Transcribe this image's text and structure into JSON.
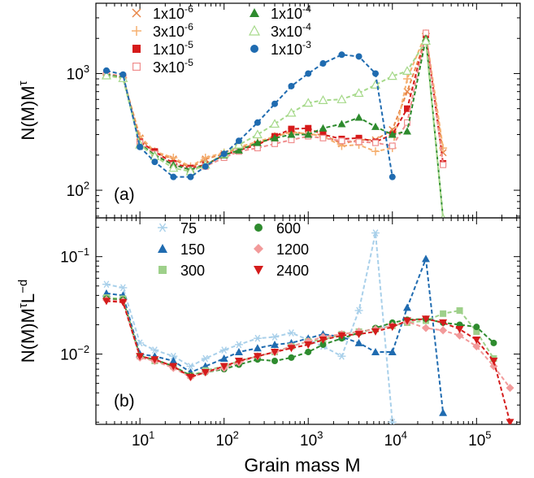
{
  "figure": {
    "xlabel": "Grain mass M",
    "x_tick_labels": [
      {
        "v": 10,
        "base": "10",
        "exp": "1"
      },
      {
        "v": 100,
        "base": "10",
        "exp": "2"
      },
      {
        "v": 1000,
        "base": "10",
        "exp": "3"
      },
      {
        "v": 10000,
        "base": "10",
        "exp": "4"
      },
      {
        "v": 100000,
        "base": "10",
        "exp": "5"
      }
    ]
  },
  "chart_data": [
    {
      "type": "line",
      "panel_label": "(a)",
      "ylabel": "N(M)M",
      "ylabel_sup": "τ",
      "xscale": "log",
      "yscale": "log",
      "xlim": [
        3,
        330000
      ],
      "ylim": [
        58,
        4000
      ],
      "y_tick_labels": [
        {
          "v": 100,
          "base": "10",
          "exp": "2"
        },
        {
          "v": 1000,
          "base": "10",
          "exp": "3"
        }
      ],
      "legend": {
        "placement": "top-left",
        "columns": 2
      },
      "series": [
        {
          "name": "1x10^-6",
          "label_base": "1x10",
          "label_exp": "-6",
          "color": "#e8874a",
          "marker": "x",
          "x": [
            4,
            6.3,
            10,
            15,
            25,
            40,
            60,
            100,
            150,
            250,
            400,
            630,
            1000,
            1500,
            2500,
            4000,
            6300,
            10000,
            15000,
            25000,
            40000
          ],
          "y": [
            960,
            910,
            280,
            210,
            185,
            155,
            185,
            205,
            230,
            250,
            285,
            320,
            300,
            300,
            250,
            270,
            270,
            330,
            700,
            2000,
            210
          ]
        },
        {
          "name": "3x10^-6",
          "label_base": "3x10",
          "label_exp": "-6",
          "color": "#f5b070",
          "marker": "plus",
          "x": [
            4,
            6.3,
            10,
            15,
            25,
            40,
            60,
            100,
            150,
            250,
            400,
            630,
            1000,
            1500,
            2500,
            4000,
            6300,
            10000,
            15000,
            25000,
            40000
          ],
          "y": [
            975,
            920,
            290,
            215,
            190,
            160,
            190,
            210,
            235,
            260,
            290,
            315,
            305,
            290,
            240,
            245,
            215,
            230,
            900,
            2200,
            230
          ]
        },
        {
          "name": "1x10^-5",
          "label_base": "1x10",
          "label_exp": "-5",
          "color": "#d61a1a",
          "marker": "square",
          "x": [
            4,
            6.3,
            10,
            15,
            25,
            40,
            60,
            100,
            150,
            250,
            400,
            630,
            1000,
            1500,
            2500,
            4000,
            6300,
            10000,
            15000,
            25000,
            40000
          ],
          "y": [
            990,
            930,
            260,
            215,
            170,
            155,
            165,
            200,
            220,
            245,
            290,
            335,
            340,
            300,
            275,
            280,
            260,
            300,
            500,
            2150,
            170
          ]
        },
        {
          "name": "3x10^-5",
          "label_base": "3x10",
          "label_exp": "-5",
          "color": "#f08e8e",
          "marker": "square-open",
          "x": [
            4,
            6.3,
            10,
            15,
            25,
            40,
            60,
            100,
            150,
            250,
            400,
            630,
            1000,
            1500,
            2500,
            4000,
            6300,
            10000,
            15000,
            25000,
            40000
          ],
          "y": [
            1000,
            950,
            255,
            205,
            165,
            150,
            160,
            190,
            215,
            230,
            250,
            270,
            290,
            280,
            265,
            260,
            255,
            240,
            380,
            2230,
            165
          ]
        },
        {
          "name": "1x10^-4",
          "label_base": "1x10",
          "label_exp": "-4",
          "color": "#2e8b2e",
          "marker": "triangle",
          "x": [
            4,
            6.3,
            10,
            15,
            25,
            40,
            60,
            100,
            150,
            250,
            400,
            630,
            1000,
            1500,
            2500,
            4000,
            6300,
            10000,
            15000,
            25000,
            40000
          ],
          "y": [
            980,
            920,
            250,
            200,
            165,
            150,
            165,
            200,
            220,
            255,
            280,
            300,
            300,
            340,
            370,
            420,
            350,
            300,
            320,
            2000,
            58
          ]
        },
        {
          "name": "3x10^-4",
          "label_base": "3x10",
          "label_exp": "-4",
          "color": "#a6d98a",
          "marker": "triangle-open",
          "x": [
            4,
            6.3,
            10,
            15,
            25,
            40,
            60,
            100,
            150,
            250,
            400,
            630,
            1000,
            1500,
            2500,
            4000,
            6300,
            10000,
            15000,
            25000,
            40000
          ],
          "y": [
            960,
            910,
            245,
            195,
            155,
            145,
            165,
            205,
            245,
            300,
            370,
            460,
            560,
            590,
            600,
            680,
            800,
            950,
            1050,
            1900,
            57
          ]
        },
        {
          "name": "1x10^-3",
          "label_base": "1x10",
          "label_exp": "-3",
          "color": "#1f6bb0",
          "marker": "circle",
          "x": [
            4,
            6.3,
            10,
            15,
            25,
            40,
            60,
            100,
            150,
            250,
            400,
            630,
            1000,
            1500,
            2500,
            4000,
            6300,
            10000
          ],
          "y": [
            1060,
            980,
            235,
            175,
            130,
            130,
            160,
            205,
            265,
            380,
            550,
            780,
            1000,
            1220,
            1450,
            1400,
            1000,
            130
          ]
        }
      ]
    },
    {
      "type": "line",
      "panel_label": "(b)",
      "ylabel": "N(M)M",
      "ylabel_sup": "τ",
      "ylabel_tail": "L",
      "ylabel_tail_sup": "−d",
      "xscale": "log",
      "yscale": "log",
      "xlim": [
        3,
        330000
      ],
      "ylim": [
        0.0019,
        0.25
      ],
      "y_tick_labels": [
        {
          "v": 0.01,
          "base": "10",
          "exp": "−2"
        },
        {
          "v": 0.1,
          "base": "10",
          "exp": "−1"
        }
      ],
      "legend": {
        "placement": "top-center",
        "columns": 2
      },
      "series": [
        {
          "name": "75",
          "color": "#a9d0ea",
          "marker": "star",
          "x": [
            4,
            6.3,
            10,
            15,
            25,
            40,
            60,
            100,
            150,
            250,
            400,
            630,
            1000,
            1500,
            2500,
            4000,
            6300,
            10000
          ],
          "y": [
            0.052,
            0.048,
            0.013,
            0.011,
            0.0095,
            0.0075,
            0.009,
            0.011,
            0.0125,
            0.0145,
            0.015,
            0.0165,
            0.014,
            0.012,
            0.0095,
            0.028,
            0.175,
            0.002
          ]
        },
        {
          "name": "150",
          "color": "#1f6bb0",
          "marker": "triangle",
          "x": [
            4,
            6.3,
            10,
            15,
            25,
            40,
            60,
            100,
            150,
            250,
            400,
            630,
            1000,
            1500,
            2500,
            4000,
            6300,
            10000,
            15000,
            25000,
            40000
          ],
          "y": [
            0.042,
            0.04,
            0.01,
            0.0095,
            0.0085,
            0.0065,
            0.0075,
            0.009,
            0.0105,
            0.0115,
            0.0125,
            0.013,
            0.0145,
            0.016,
            0.015,
            0.013,
            0.0105,
            0.0105,
            0.03,
            0.095,
            0.0025
          ]
        },
        {
          "name": "300",
          "color": "#9ed08a",
          "marker": "square",
          "x": [
            4,
            6.3,
            10,
            15,
            25,
            40,
            60,
            100,
            150,
            250,
            400,
            630,
            1000,
            1500,
            2500,
            4000,
            6300,
            10000,
            15000,
            25000,
            40000,
            63000,
            100000,
            160000
          ],
          "y": [
            0.038,
            0.037,
            0.0095,
            0.0085,
            0.0075,
            0.006,
            0.0068,
            0.0075,
            0.0085,
            0.0095,
            0.0105,
            0.012,
            0.0135,
            0.014,
            0.016,
            0.017,
            0.018,
            0.0195,
            0.021,
            0.022,
            0.026,
            0.028,
            0.017,
            0.009
          ]
        },
        {
          "name": "600",
          "color": "#2e8b2e",
          "marker": "circle",
          "x": [
            4,
            6.3,
            10,
            15,
            25,
            40,
            60,
            100,
            150,
            250,
            400,
            630,
            1000,
            1500,
            2500,
            4000,
            6300,
            10000,
            15000,
            25000,
            40000,
            63000,
            100000,
            160000
          ],
          "y": [
            0.037,
            0.036,
            0.0095,
            0.0088,
            0.0075,
            0.006,
            0.0065,
            0.007,
            0.0078,
            0.0088,
            0.0085,
            0.0092,
            0.0105,
            0.0125,
            0.0145,
            0.0165,
            0.0185,
            0.021,
            0.0225,
            0.023,
            0.021,
            0.02,
            0.019,
            0.013
          ]
        },
        {
          "name": "1200",
          "color": "#f29a9a",
          "marker": "diamond",
          "x": [
            4,
            6.3,
            10,
            15,
            25,
            40,
            60,
            100,
            150,
            250,
            400,
            630,
            1000,
            1500,
            2500,
            4000,
            6300,
            10000,
            15000,
            25000,
            40000,
            63000,
            100000,
            160000,
            250000
          ],
          "y": [
            0.036,
            0.035,
            0.0092,
            0.0085,
            0.0072,
            0.0058,
            0.0065,
            0.0072,
            0.0082,
            0.0095,
            0.0105,
            0.012,
            0.0135,
            0.015,
            0.016,
            0.017,
            0.018,
            0.0195,
            0.0215,
            0.0185,
            0.0175,
            0.0155,
            0.012,
            0.0075,
            0.0045
          ]
        },
        {
          "name": "2400",
          "color": "#d41c1c",
          "marker": "triangle-down",
          "x": [
            4,
            6.3,
            10,
            15,
            25,
            40,
            60,
            100,
            150,
            250,
            400,
            630,
            1000,
            1500,
            2500,
            4000,
            6300,
            10000,
            15000,
            25000,
            40000,
            63000,
            100000,
            160000,
            250000
          ],
          "y": [
            0.035,
            0.034,
            0.0095,
            0.0088,
            0.0075,
            0.0058,
            0.0065,
            0.0075,
            0.0085,
            0.0095,
            0.0105,
            0.0115,
            0.0125,
            0.014,
            0.0155,
            0.016,
            0.017,
            0.019,
            0.022,
            0.023,
            0.021,
            0.018,
            0.014,
            0.0085,
            0.002
          ]
        }
      ]
    }
  ]
}
